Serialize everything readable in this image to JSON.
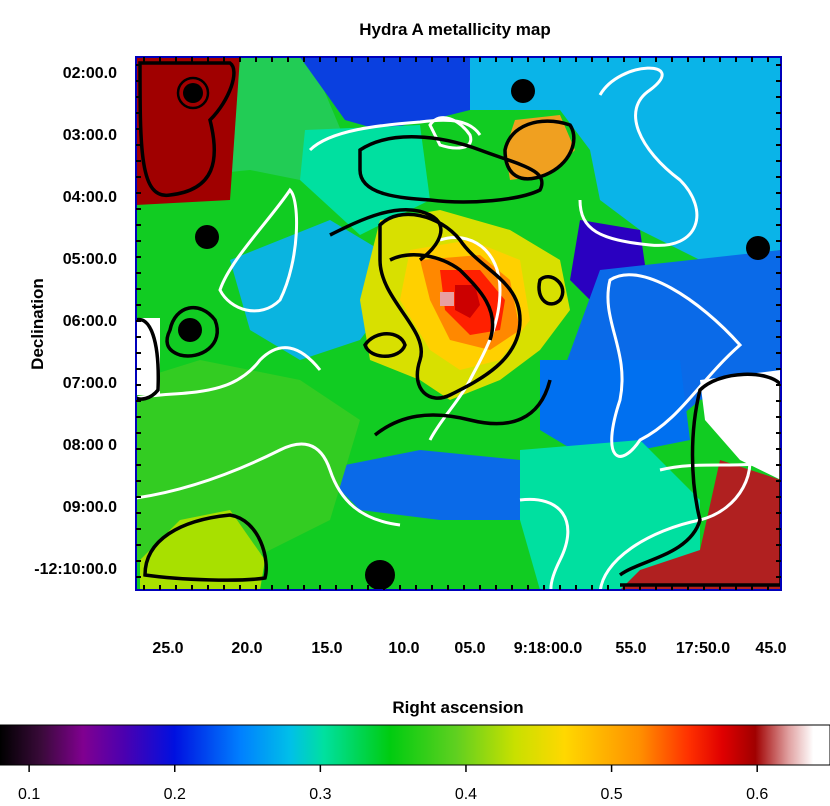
{
  "chart_data": {
    "type": "heatmap",
    "title": "Hydra A metallicity map",
    "xlabel": "Right ascension",
    "ylabel": "Declination",
    "x_tick_labels": [
      "25.0",
      "20.0",
      "15.0",
      "10.0",
      "05.0",
      "9:18:00.0",
      "55.0",
      "17:50.0",
      "45.0"
    ],
    "y_tick_labels": [
      "02:00.0",
      "03:00.0",
      "04:00.0",
      "05:00.0",
      "06:00.0",
      "07:00.0",
      "08:00 0",
      "09:00.0",
      "-12:10:00.0"
    ],
    "colorbar": {
      "range": [
        0.08,
        0.65
      ],
      "tick_values": [
        0.1,
        0.2,
        0.3,
        0.4,
        0.5,
        0.6
      ],
      "tick_labels": [
        "0.1",
        "0.2",
        "0.3",
        "0.4",
        "0.5",
        "0.6"
      ],
      "colormap": "black-purple-blue-cyan-green-yellow-orange-red-darkred-white"
    },
    "contours": [
      "white contour lines",
      "black contour lines"
    ],
    "masked_point_sources": "black circular masks",
    "colors": {
      "frame": "#0000bb",
      "dark_red": "#a00000",
      "white_contour": "#ffffff",
      "black_contour": "#000000"
    }
  }
}
